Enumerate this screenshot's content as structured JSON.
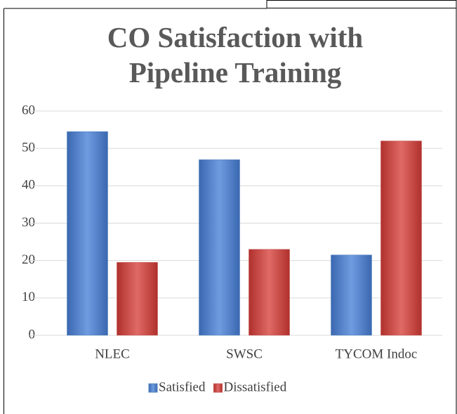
{
  "chart_data": {
    "type": "bar",
    "title": "CO Satisfaction with Pipeline Training",
    "categories": [
      "NLEC",
      "SWSC",
      "TYCOM Indoc"
    ],
    "series": [
      {
        "name": "Satisfied",
        "color": "#4f81bd",
        "values": [
          54.5,
          47,
          21.5
        ]
      },
      {
        "name": "Dissatisfied",
        "color": "#c0504d",
        "values": [
          19.5,
          23,
          52
        ]
      }
    ],
    "ylim": [
      0,
      60
    ],
    "yticks": [
      0,
      10,
      20,
      30,
      40,
      50,
      60
    ],
    "grid": true,
    "legend": "bottom"
  }
}
